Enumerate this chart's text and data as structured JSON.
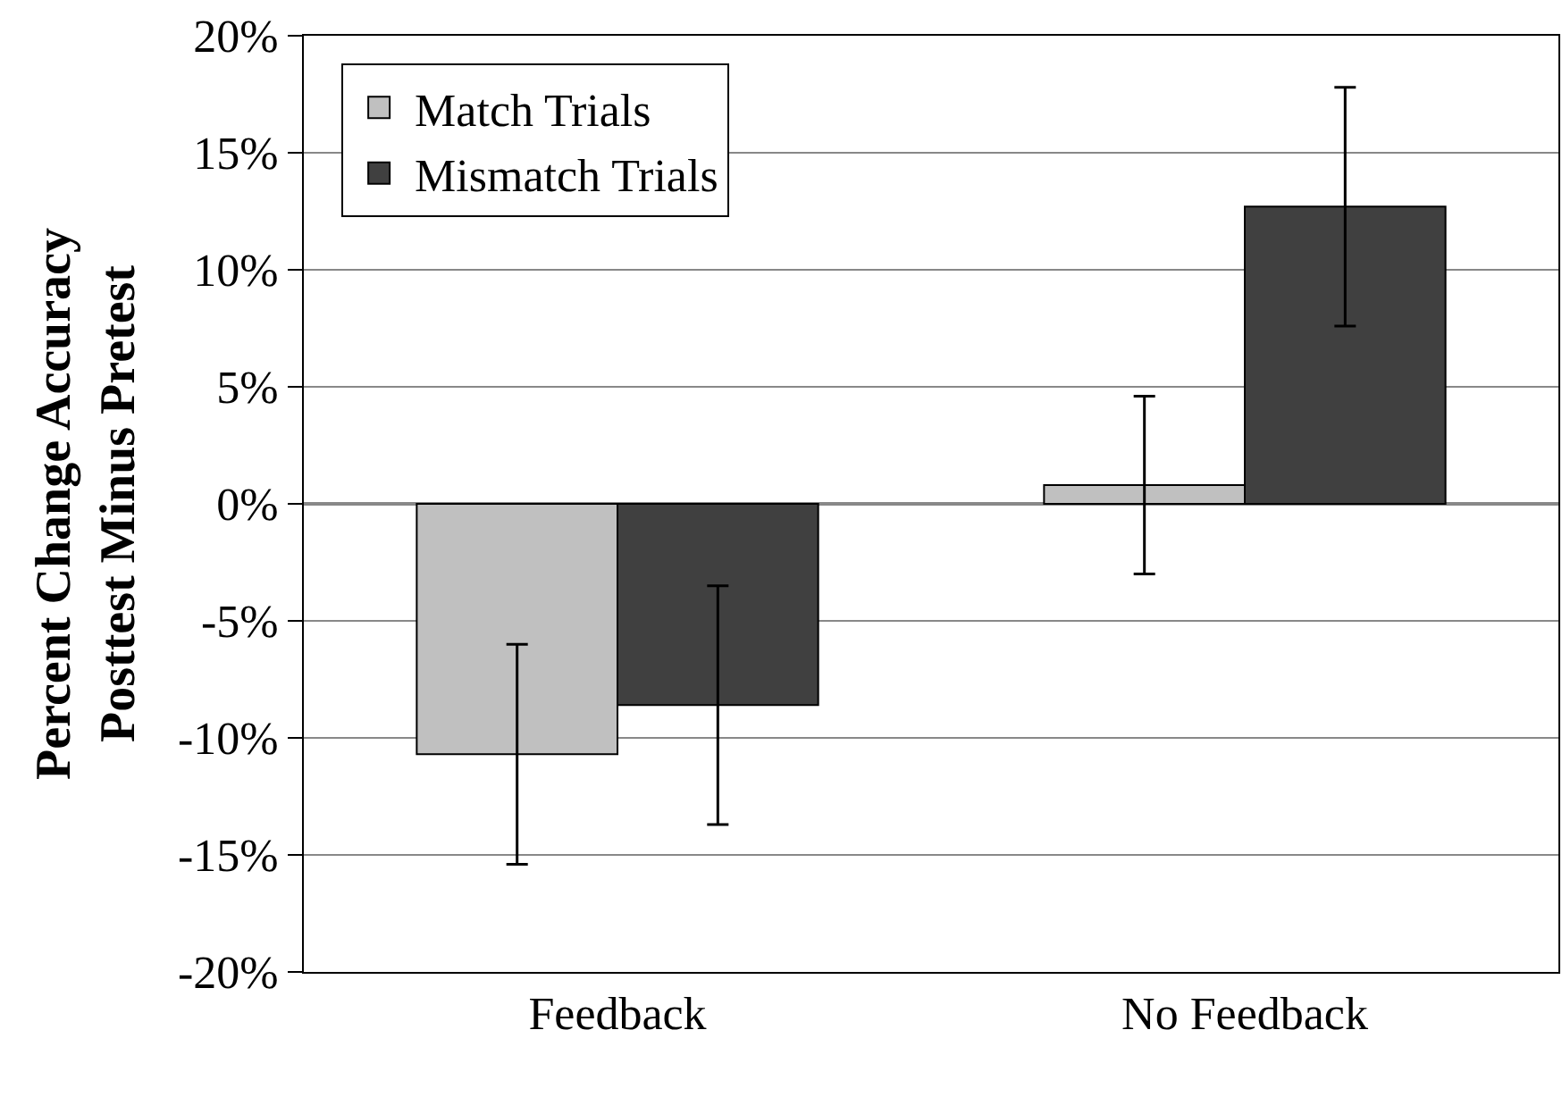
{
  "chart_data": {
    "type": "bar",
    "ylabel": "Percent Change Accuracy\nPosttest Minus Pretest",
    "categories": [
      "Feedback",
      "No Feedback"
    ],
    "series": [
      {
        "name": "Match Trials",
        "color": "#c0c0c0",
        "values": [
          -10.7,
          0.8
        ],
        "errors": [
          4.7,
          3.8
        ]
      },
      {
        "name": "Mismatch Trials",
        "color": "#404040",
        "values": [
          -8.6,
          12.7
        ],
        "errors": [
          5.1,
          5.1
        ]
      }
    ],
    "ylim": [
      -20,
      20
    ],
    "yticks": [
      {
        "value": -20,
        "label": "-20%"
      },
      {
        "value": -15,
        "label": "-15%"
      },
      {
        "value": -10,
        "label": "-10%"
      },
      {
        "value": -5,
        "label": "-5%"
      },
      {
        "value": 0,
        "label": "0%"
      },
      {
        "value": 5,
        "label": "5%"
      },
      {
        "value": 10,
        "label": "10%"
      },
      {
        "value": 15,
        "label": "15%"
      },
      {
        "value": 20,
        "label": "20%"
      }
    ],
    "grid": "y",
    "legend": "top left"
  }
}
